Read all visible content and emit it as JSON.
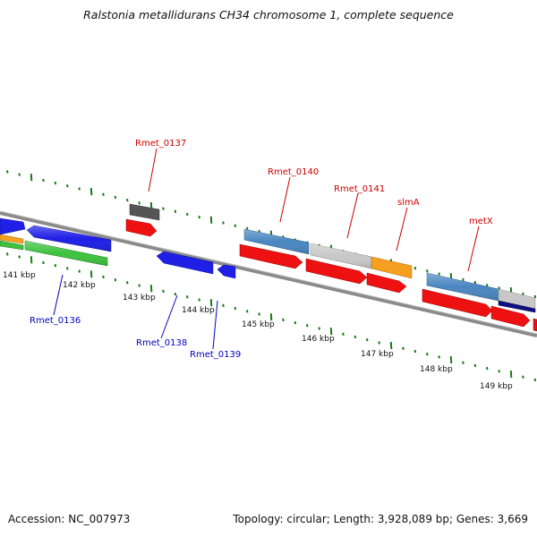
{
  "title": "Ralstonia metallidurans CH34 chromosome 1, complete sequence",
  "footer": {
    "accession": "Accession: NC_007973",
    "summary": "Topology: circular; Length: 3,928,089 bp; Genes: 3,669"
  },
  "colors": {
    "forward_label": "#cc0000",
    "reverse_label": "#0000bb",
    "ticks": "#1a7a1a",
    "backbone": "#888888"
  },
  "ticks": [
    "141 kbp",
    "142 kbp",
    "143 kbp",
    "144 kbp",
    "145 kbp",
    "146 kbp",
    "147 kbp",
    "148 kbp",
    "149 kbp"
  ],
  "gene_labels": [
    {
      "text": "Rmet_0137",
      "strand": "forward"
    },
    {
      "text": "Rmet_0140",
      "strand": "forward"
    },
    {
      "text": "Rmet_0141",
      "strand": "forward"
    },
    {
      "text": "slmA",
      "strand": "forward"
    },
    {
      "text": "metX",
      "strand": "forward"
    },
    {
      "text": "Rmet_0136",
      "strand": "reverse"
    },
    {
      "text": "Rmet_0138",
      "strand": "reverse"
    },
    {
      "text": "Rmet_0139",
      "strand": "reverse"
    }
  ]
}
